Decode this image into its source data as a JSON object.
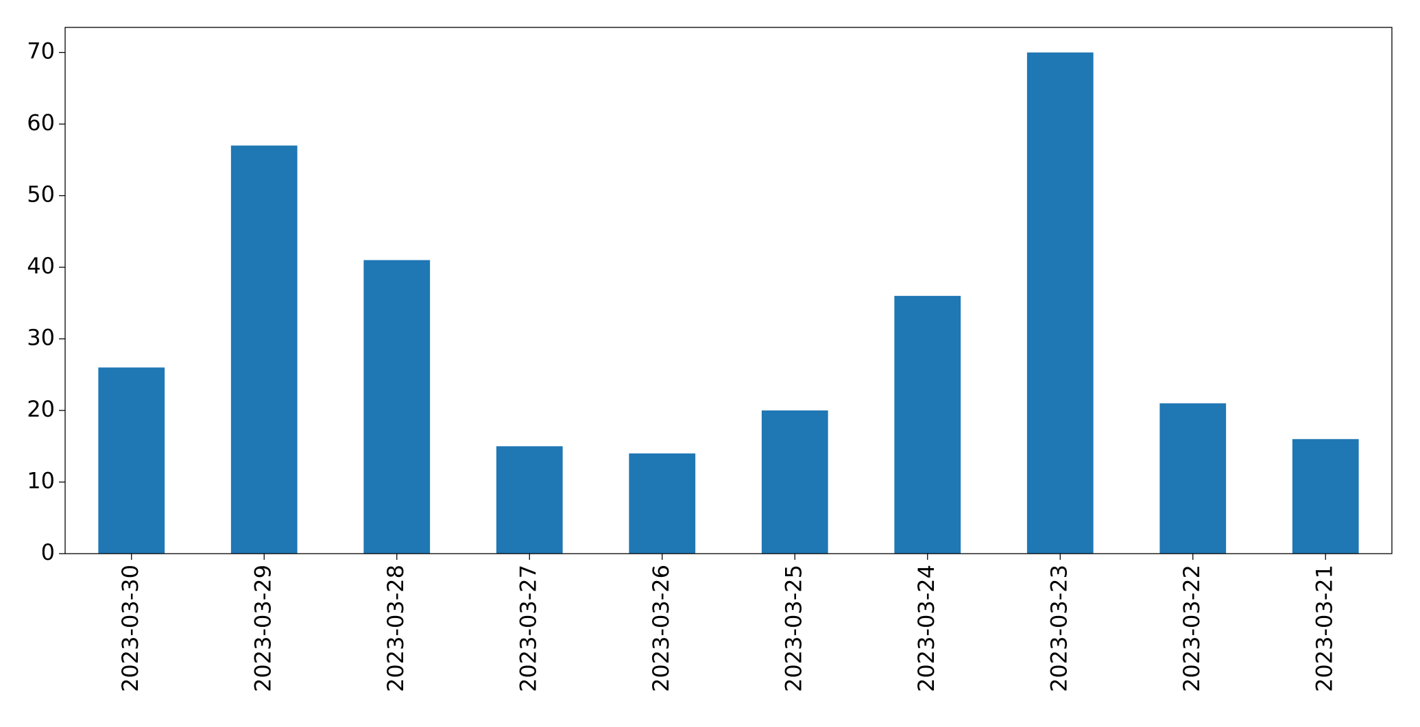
{
  "chart_data": {
    "type": "bar",
    "categories": [
      "2023-03-30",
      "2023-03-29",
      "2023-03-28",
      "2023-03-27",
      "2023-03-26",
      "2023-03-25",
      "2023-03-24",
      "2023-03-23",
      "2023-03-22",
      "2023-03-21"
    ],
    "values": [
      26,
      57,
      41,
      15,
      14,
      20,
      36,
      70,
      21,
      16
    ],
    "color": "#1f77b4",
    "ylim": [
      0,
      73.5
    ],
    "yticks": [
      0,
      10,
      20,
      30,
      40,
      50,
      60,
      70
    ],
    "grid": false
  }
}
